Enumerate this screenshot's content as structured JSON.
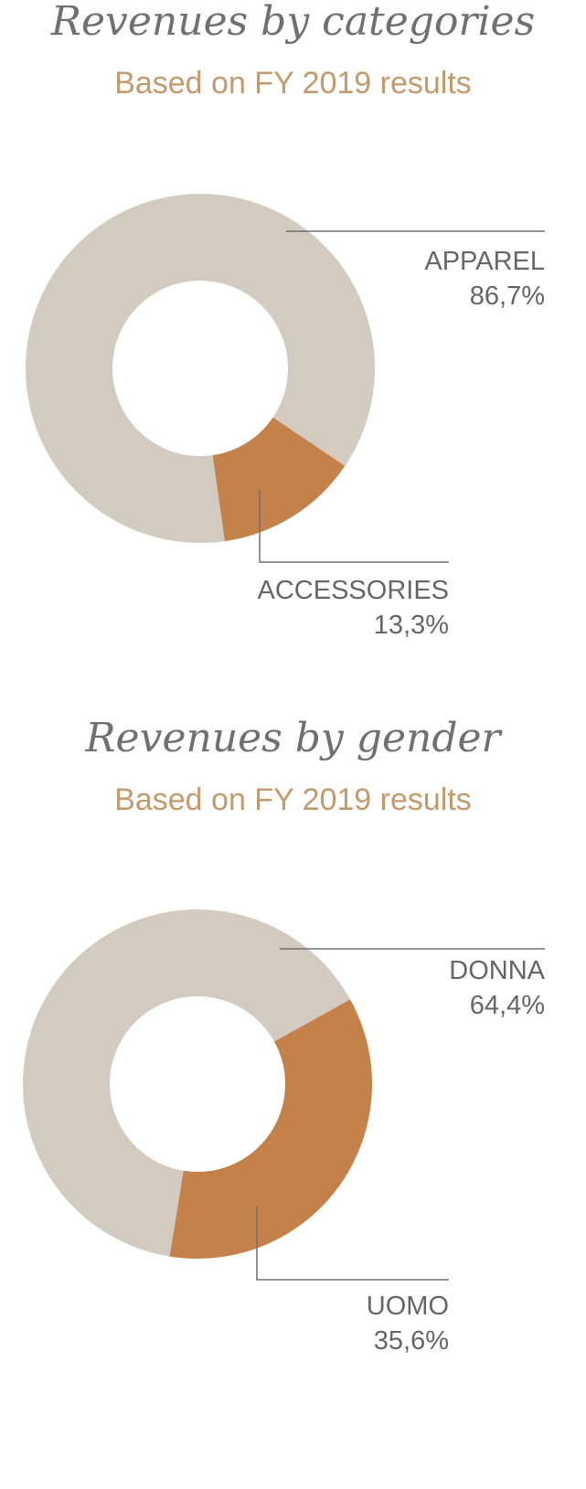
{
  "colors": {
    "light": "#d3cbbf",
    "accent": "#c4824a",
    "leader": "#707070",
    "title": "#707070",
    "subtitle": "#c49a6c",
    "label": "#666666"
  },
  "chart_data": [
    {
      "type": "pie",
      "title": "Revenues by categories",
      "subtitle": "Based on FY 2019 results",
      "slices": [
        {
          "label": "APPAREL",
          "value": 86.7,
          "value_text": "86,7%",
          "color": "light"
        },
        {
          "label": "ACCESSORIES",
          "value": 13.3,
          "value_text": "13,3%",
          "color": "accent"
        }
      ]
    },
    {
      "type": "pie",
      "title": "Revenues by gender",
      "subtitle": "Based on FY 2019 results",
      "slices": [
        {
          "label": "DONNA",
          "value": 64.4,
          "value_text": "64,4%",
          "color": "light"
        },
        {
          "label": "UOMO",
          "value": 35.6,
          "value_text": "35,6%",
          "color": "accent"
        }
      ]
    }
  ]
}
